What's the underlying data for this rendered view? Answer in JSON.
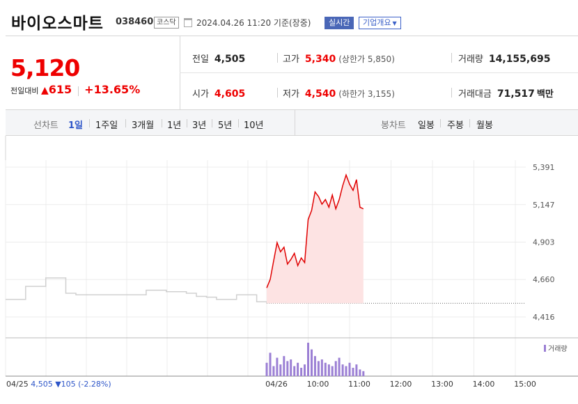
{
  "header": {
    "stock_name": "바이오스마트",
    "stock_code": "038460",
    "market": "코스닥",
    "date_text": "2024.04.26 11:20 기준(장중)",
    "realtime_label": "실시간",
    "company_overview_label": "기업개요"
  },
  "quote": {
    "current_price": "5,120",
    "change_label": "전일대비",
    "change_arrow": "▲",
    "change_amount": "615",
    "change_percent": "+13.65%",
    "prev_close_label": "전일",
    "prev_close": "4,505",
    "open_label": "시가",
    "open": "4,605",
    "high_label": "고가",
    "high": "5,340",
    "upper_limit": "(상한가 5,850)",
    "low_label": "저가",
    "low": "4,540",
    "lower_limit": "(하한가 3,155)",
    "volume_label": "거래량",
    "volume": "14,155,695",
    "amount_label": "거래대금",
    "amount": "71,517",
    "amount_unit": "백만"
  },
  "toolbar": {
    "line_chart_label": "선차트",
    "periods": [
      "1일",
      "1주일",
      "3개월",
      "1년",
      "3년",
      "5년",
      "10년"
    ],
    "active_period": "1일",
    "candle_chart_label": "봉차트",
    "candle_periods": [
      "일봉",
      "주봉",
      "월봉"
    ]
  },
  "chart": {
    "prev_day_label": "04/25",
    "prev_day_value": "4,505",
    "prev_day_change": "▼105 (-2.28%)",
    "volume_legend": "거래량"
  },
  "colors": {
    "up": "#e00000",
    "down": "#2d55c8",
    "accent": "#2d55c8",
    "prev_line": "#d0d0d0",
    "volume": "#9b7fd4",
    "area_fill": "#fde3e3"
  },
  "chart_data": {
    "type": "line",
    "y_ticks": [
      "5,391",
      "5,147",
      "4,903",
      "4,660",
      "4,416"
    ],
    "ylim": [
      4416,
      5391
    ],
    "x_ticks": [
      "04/26",
      "10:00",
      "11:00",
      "12:00",
      "13:00",
      "14:00",
      "15:00"
    ],
    "prev_close_reference": 4505,
    "prev_day_series": {
      "name": "04/25",
      "values": [
        4530,
        4530,
        4615,
        4615,
        4670,
        4670,
        4570,
        4560,
        4560,
        4560,
        4560,
        4560,
        4560,
        4560,
        4590,
        4590,
        4580,
        4580,
        4570,
        4550,
        4545,
        4530,
        4530,
        4560,
        4560,
        4515,
        4505
      ]
    },
    "today_series": {
      "name": "04/26",
      "x": [
        "09:00",
        "09:05",
        "09:10",
        "09:15",
        "09:20",
        "09:25",
        "09:30",
        "09:35",
        "09:40",
        "09:45",
        "09:50",
        "09:55",
        "10:00",
        "10:05",
        "10:10",
        "10:15",
        "10:20",
        "10:25",
        "10:30",
        "10:35",
        "10:40",
        "10:45",
        "10:50",
        "10:55",
        "11:00",
        "11:05",
        "11:10",
        "11:15",
        "11:20"
      ],
      "values": [
        4605,
        4660,
        4780,
        4900,
        4840,
        4870,
        4760,
        4790,
        4830,
        4750,
        4800,
        4770,
        5050,
        5110,
        5230,
        5200,
        5150,
        5180,
        5130,
        5210,
        5120,
        5180,
        5270,
        5340,
        5280,
        5240,
        5310,
        5130,
        5120
      ]
    },
    "volume": [
      40,
      70,
      30,
      55,
      35,
      60,
      45,
      50,
      30,
      40,
      25,
      35,
      100,
      80,
      60,
      45,
      50,
      40,
      35,
      30,
      45,
      55,
      35,
      30,
      40,
      25,
      35,
      20,
      15
    ],
    "legend": [
      "거래량"
    ]
  }
}
